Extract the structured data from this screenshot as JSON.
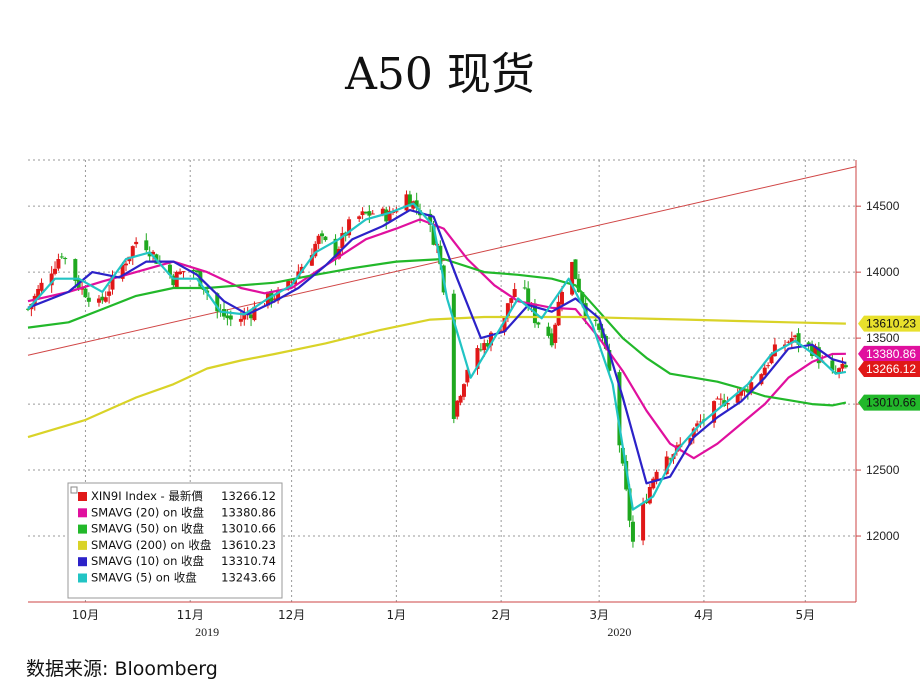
{
  "title": "A50 现货",
  "source": "数据来源:  Bloomberg",
  "chart_data": {
    "type": "candlestick",
    "ylim": [
      11500,
      14850
    ],
    "y_ticks": [
      12000,
      12500,
      13000,
      13500,
      14000,
      14500
    ],
    "y_tick_labels": [
      "12000",
      "12500",
      "13000",
      "13500",
      "14000",
      "14500"
    ],
    "x_range": [
      "2019-09-23",
      "2020-05-25"
    ],
    "months": [
      {
        "label": "10月",
        "date": "2019-10-10"
      },
      {
        "label": "11月",
        "date": "2019-11-10"
      },
      {
        "label": "12月",
        "date": "2019-12-10"
      },
      {
        "label": "1月",
        "date": "2020-01-10"
      },
      {
        "label": "2月",
        "date": "2020-02-10"
      },
      {
        "label": "3月",
        "date": "2020-03-10"
      },
      {
        "label": "4月",
        "date": "2020-04-10"
      },
      {
        "label": "5月",
        "date": "2020-05-10"
      }
    ],
    "years": [
      {
        "label": "2019",
        "date": "2019-11-15"
      },
      {
        "label": "2020",
        "date": "2020-03-16"
      }
    ],
    "trendline": [
      [
        "2019-09-23",
        13370
      ],
      [
        "2020-05-25",
        14800
      ]
    ],
    "close_path": [
      [
        "2019-09-23",
        13720
      ],
      [
        "2019-09-27",
        13900
      ],
      [
        "2019-10-03",
        14150
      ],
      [
        "2019-10-08",
        13900
      ],
      [
        "2019-10-14",
        13750
      ],
      [
        "2019-10-21",
        14050
      ],
      [
        "2019-10-26",
        14280
      ],
      [
        "2019-10-31",
        14100
      ],
      [
        "2019-11-05",
        13950
      ],
      [
        "2019-11-10",
        14050
      ],
      [
        "2019-11-14",
        13900
      ],
      [
        "2019-11-18",
        13700
      ],
      [
        "2019-11-23",
        13620
      ],
      [
        "2019-11-28",
        13700
      ],
      [
        "2019-12-03",
        13800
      ],
      [
        "2019-12-08",
        13850
      ],
      [
        "2019-12-13",
        14050
      ],
      [
        "2019-12-18",
        14250
      ],
      [
        "2019-12-23",
        14150
      ],
      [
        "2019-12-28",
        14400
      ],
      [
        "2020-01-03",
        14450
      ],
      [
        "2020-01-08",
        14430
      ],
      [
        "2020-01-13",
        14580
      ],
      [
        "2020-01-18",
        14440
      ],
      [
        "2020-01-22",
        14200
      ],
      [
        "2020-01-24",
        13900
      ],
      [
        "2020-01-26",
        12850
      ],
      [
        "2020-01-31",
        13280
      ],
      [
        "2020-02-05",
        13450
      ],
      [
        "2020-02-10",
        13600
      ],
      [
        "2020-02-15",
        13950
      ],
      [
        "2020-02-20",
        13650
      ],
      [
        "2020-02-25",
        13500
      ],
      [
        "2020-03-01",
        14150
      ],
      [
        "2020-03-06",
        13700
      ],
      [
        "2020-03-11",
        13500
      ],
      [
        "2020-03-14",
        13100
      ],
      [
        "2020-03-17",
        12500
      ],
      [
        "2020-03-20",
        11950
      ],
      [
        "2020-03-24",
        12300
      ],
      [
        "2020-03-28",
        12600
      ],
      [
        "2020-04-02",
        12650
      ],
      [
        "2020-04-07",
        12800
      ],
      [
        "2020-04-12",
        12950
      ],
      [
        "2020-04-17",
        13050
      ],
      [
        "2020-04-22",
        13100
      ],
      [
        "2020-04-27",
        13250
      ],
      [
        "2020-05-01",
        13400
      ],
      [
        "2020-05-06",
        13500
      ],
      [
        "2020-05-10",
        13450
      ],
      [
        "2020-05-13",
        13400
      ],
      [
        "2020-05-17",
        13200
      ],
      [
        "2020-05-20",
        13250
      ],
      [
        "2020-05-22",
        13266
      ]
    ],
    "series": [
      {
        "name": "SMAVG (20)  on 收盘",
        "color": "#e0109e",
        "points": [
          [
            "2019-09-23",
            13780
          ],
          [
            "2019-10-05",
            13850
          ],
          [
            "2019-10-15",
            13930
          ],
          [
            "2019-10-25",
            14000
          ],
          [
            "2019-11-05",
            14080
          ],
          [
            "2019-11-15",
            14000
          ],
          [
            "2019-11-25",
            13880
          ],
          [
            "2019-12-02",
            13840
          ],
          [
            "2019-12-10",
            13880
          ],
          [
            "2019-12-20",
            14050
          ],
          [
            "2020-01-01",
            14250
          ],
          [
            "2020-01-10",
            14330
          ],
          [
            "2020-01-17",
            14400
          ],
          [
            "2020-01-24",
            14330
          ],
          [
            "2020-01-31",
            14100
          ],
          [
            "2020-02-08",
            13900
          ],
          [
            "2020-02-15",
            13780
          ],
          [
            "2020-02-25",
            13730
          ],
          [
            "2020-03-03",
            13720
          ],
          [
            "2020-03-10",
            13500
          ],
          [
            "2020-03-17",
            13250
          ],
          [
            "2020-03-24",
            12950
          ],
          [
            "2020-03-31",
            12700
          ],
          [
            "2020-04-07",
            12590
          ],
          [
            "2020-04-14",
            12700
          ],
          [
            "2020-04-21",
            12850
          ],
          [
            "2020-04-28",
            13000
          ],
          [
            "2020-05-05",
            13200
          ],
          [
            "2020-05-12",
            13320
          ],
          [
            "2020-05-18",
            13380
          ],
          [
            "2020-05-22",
            13381
          ]
        ]
      },
      {
        "name": "SMAVG (50)  on 收盘",
        "color": "#22b82a",
        "points": [
          [
            "2019-09-23",
            13580
          ],
          [
            "2019-10-05",
            13620
          ],
          [
            "2019-10-15",
            13720
          ],
          [
            "2019-10-25",
            13820
          ],
          [
            "2019-11-05",
            13880
          ],
          [
            "2019-11-15",
            13880
          ],
          [
            "2019-11-25",
            13900
          ],
          [
            "2019-12-05",
            13920
          ],
          [
            "2019-12-15",
            13970
          ],
          [
            "2019-12-28",
            14030
          ],
          [
            "2020-01-10",
            14080
          ],
          [
            "2020-01-24",
            14100
          ],
          [
            "2020-02-05",
            14000
          ],
          [
            "2020-02-15",
            13980
          ],
          [
            "2020-02-25",
            13950
          ],
          [
            "2020-03-03",
            13900
          ],
          [
            "2020-03-10",
            13700
          ],
          [
            "2020-03-17",
            13500
          ],
          [
            "2020-03-24",
            13350
          ],
          [
            "2020-03-31",
            13230
          ],
          [
            "2020-04-07",
            13200
          ],
          [
            "2020-04-14",
            13170
          ],
          [
            "2020-04-21",
            13120
          ],
          [
            "2020-04-28",
            13060
          ],
          [
            "2020-05-05",
            13030
          ],
          [
            "2020-05-12",
            13000
          ],
          [
            "2020-05-18",
            12990
          ],
          [
            "2020-05-22",
            13011
          ]
        ]
      },
      {
        "name": "SMAVG (200)  on 收盘",
        "color": "#d9d328",
        "points": [
          [
            "2019-09-23",
            12750
          ],
          [
            "2019-10-10",
            12880
          ],
          [
            "2019-10-25",
            13050
          ],
          [
            "2019-11-05",
            13150
          ],
          [
            "2019-11-15",
            13270
          ],
          [
            "2019-11-25",
            13330
          ],
          [
            "2019-12-05",
            13380
          ],
          [
            "2019-12-20",
            13460
          ],
          [
            "2020-01-05",
            13560
          ],
          [
            "2020-01-20",
            13640
          ],
          [
            "2020-02-05",
            13660
          ],
          [
            "2020-02-20",
            13660
          ],
          [
            "2020-03-05",
            13660
          ],
          [
            "2020-03-20",
            13650
          ],
          [
            "2020-04-05",
            13640
          ],
          [
            "2020-04-20",
            13630
          ],
          [
            "2020-05-05",
            13620
          ],
          [
            "2020-05-22",
            13610
          ]
        ]
      },
      {
        "name": "SMAVG (10)  on 收盘",
        "color": "#2c22c8",
        "points": [
          [
            "2019-09-23",
            13730
          ],
          [
            "2019-10-05",
            13850
          ],
          [
            "2019-10-12",
            14000
          ],
          [
            "2019-10-20",
            13960
          ],
          [
            "2019-10-28",
            14080
          ],
          [
            "2019-11-05",
            14080
          ],
          [
            "2019-11-12",
            13980
          ],
          [
            "2019-11-20",
            13780
          ],
          [
            "2019-11-27",
            13680
          ],
          [
            "2019-12-05",
            13780
          ],
          [
            "2019-12-12",
            13880
          ],
          [
            "2019-12-20",
            14050
          ],
          [
            "2019-12-28",
            14250
          ],
          [
            "2020-01-06",
            14350
          ],
          [
            "2020-01-14",
            14470
          ],
          [
            "2020-01-21",
            14420
          ],
          [
            "2020-01-28",
            13950
          ],
          [
            "2020-02-04",
            13500
          ],
          [
            "2020-02-11",
            13550
          ],
          [
            "2020-02-18",
            13750
          ],
          [
            "2020-02-25",
            13700
          ],
          [
            "2020-03-03",
            13800
          ],
          [
            "2020-03-10",
            13650
          ],
          [
            "2020-03-17",
            13050
          ],
          [
            "2020-03-24",
            12400
          ],
          [
            "2020-03-31",
            12450
          ],
          [
            "2020-04-07",
            12750
          ],
          [
            "2020-04-14",
            12900
          ],
          [
            "2020-04-21",
            13020
          ],
          [
            "2020-04-28",
            13200
          ],
          [
            "2020-05-05",
            13420
          ],
          [
            "2020-05-12",
            13450
          ],
          [
            "2020-05-18",
            13340
          ],
          [
            "2020-05-22",
            13311
          ]
        ]
      },
      {
        "name": "SMAVG (5)  on 收盘",
        "color": "#22c4c4",
        "points": [
          [
            "2019-09-23",
            13720
          ],
          [
            "2019-10-01",
            13950
          ],
          [
            "2019-10-08",
            13950
          ],
          [
            "2019-10-15",
            13850
          ],
          [
            "2019-10-22",
            14100
          ],
          [
            "2019-10-29",
            14150
          ],
          [
            "2019-11-05",
            13950
          ],
          [
            "2019-11-12",
            13950
          ],
          [
            "2019-11-19",
            13700
          ],
          [
            "2019-11-26",
            13680
          ],
          [
            "2019-12-03",
            13800
          ],
          [
            "2019-12-10",
            13900
          ],
          [
            "2019-12-17",
            14150
          ],
          [
            "2019-12-24",
            14250
          ],
          [
            "2020-01-01",
            14400
          ],
          [
            "2020-01-08",
            14450
          ],
          [
            "2020-01-15",
            14520
          ],
          [
            "2020-01-21",
            14350
          ],
          [
            "2020-01-25",
            13800
          ],
          [
            "2020-02-01",
            13200
          ],
          [
            "2020-02-08",
            13500
          ],
          [
            "2020-02-15",
            13800
          ],
          [
            "2020-02-22",
            13650
          ],
          [
            "2020-03-01",
            13950
          ],
          [
            "2020-03-08",
            13600
          ],
          [
            "2020-03-14",
            13150
          ],
          [
            "2020-03-20",
            12200
          ],
          [
            "2020-03-26",
            12300
          ],
          [
            "2020-04-02",
            12650
          ],
          [
            "2020-04-09",
            12850
          ],
          [
            "2020-04-16",
            13000
          ],
          [
            "2020-04-23",
            13150
          ],
          [
            "2020-04-30",
            13380
          ],
          [
            "2020-05-07",
            13480
          ],
          [
            "2020-05-14",
            13350
          ],
          [
            "2020-05-19",
            13230
          ],
          [
            "2020-05-22",
            13244
          ]
        ]
      }
    ],
    "price_series": {
      "name": "XIN9I Index - 最新價",
      "color": "#e01818",
      "last": "13266.12"
    },
    "value_tags": [
      {
        "label": "13610.23",
        "value": 13610.23,
        "bg": "#e8e02c",
        "fg": "#111111"
      },
      {
        "label": "13380.86",
        "value": 13380.86,
        "bg": "#e0109e",
        "fg": "#ffffff"
      },
      {
        "label": "13266.12",
        "value": 13266.12,
        "bg": "#e01818",
        "fg": "#ffffff"
      },
      {
        "label": "13010.66",
        "value": 13010.66,
        "bg": "#22b82a",
        "fg": "#111111"
      }
    ],
    "legend": {
      "position": "bottom-left",
      "entries": [
        {
          "label": "XIN9I Index - 最新價",
          "value": "13266.12",
          "color": "#e01818"
        },
        {
          "label": "SMAVG (20)  on 收盘",
          "value": "13380.86",
          "color": "#e0109e"
        },
        {
          "label": "SMAVG (50)  on 收盘",
          "value": "13010.66",
          "color": "#22b82a"
        },
        {
          "label": "SMAVG (200)  on 收盘",
          "value": "13610.23",
          "color": "#d9d328"
        },
        {
          "label": "SMAVG (10)  on 收盘",
          "value": "13310.74",
          "color": "#2c22c8"
        },
        {
          "label": "SMAVG (5)  on 收盘",
          "value": "13243.66",
          "color": "#22c4c4"
        }
      ]
    }
  }
}
